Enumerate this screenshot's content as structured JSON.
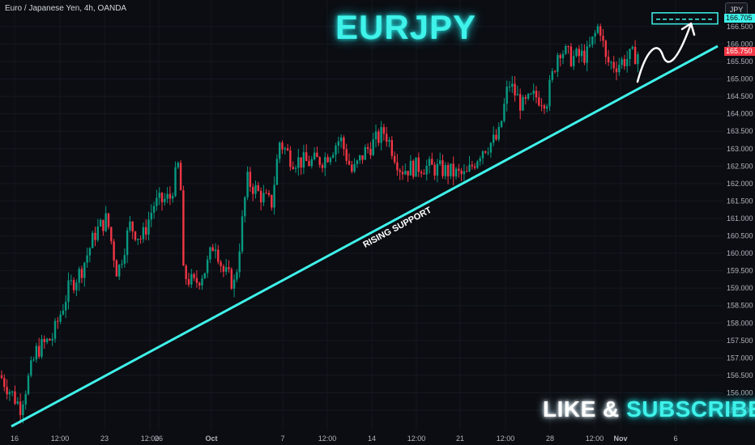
{
  "header": {
    "symbol_line": "Euro / Japanese Yen, 4h, OANDA",
    "title": "EURJPY"
  },
  "price_scale": {
    "currency": "JPY",
    "target_tag": "166.705",
    "last_price_tag": "165.750"
  },
  "cta": {
    "part1": "LIKE & ",
    "part2": "SUBSCRIBE"
  },
  "colors": {
    "background": "#0b0d12",
    "up_candle": "#089981",
    "down_candle": "#f23645",
    "support_line": "#3ff2ea",
    "arrow": "#ffffff"
  },
  "chart_data": {
    "type": "candlestick",
    "title": "EURJPY",
    "ylim": [
      155.2,
      166.9
    ],
    "y_ticks": [
      "155.500",
      "156.000",
      "156.500",
      "157.000",
      "157.500",
      "158.000",
      "158.500",
      "159.000",
      "159.500",
      "160.000",
      "160.500",
      "161.000",
      "161.500",
      "162.000",
      "162.500",
      "163.000",
      "163.500",
      "164.000",
      "164.500",
      "165.000",
      "165.500",
      "166.000",
      "166.500"
    ],
    "x_ticks": [
      "16",
      "12:00",
      "23",
      "12:00",
      "26",
      "Oct",
      "7",
      "12:00",
      "14",
      "12:00",
      "21",
      "12:00",
      "28",
      "12:00",
      "Nov",
      "6"
    ],
    "price_path": [
      [
        0,
        156.5
      ],
      [
        25,
        155.6
      ],
      [
        45,
        157.2
      ],
      [
        65,
        157.6
      ],
      [
        85,
        159.0
      ],
      [
        100,
        159.5
      ],
      [
        118,
        160.6
      ],
      [
        132,
        161.0
      ],
      [
        145,
        159.4
      ],
      [
        160,
        160.8
      ],
      [
        175,
        160.4
      ],
      [
        190,
        161.4
      ],
      [
        210,
        161.6
      ],
      [
        222,
        162.7
      ],
      [
        226,
        159.4
      ],
      [
        240,
        159.1
      ],
      [
        255,
        159.6
      ],
      [
        265,
        160.4
      ],
      [
        275,
        159.5
      ],
      [
        290,
        159.1
      ],
      [
        305,
        162.1
      ],
      [
        320,
        161.7
      ],
      [
        335,
        161.4
      ],
      [
        345,
        163.2
      ],
      [
        360,
        162.7
      ],
      [
        380,
        162.6
      ],
      [
        400,
        162.7
      ],
      [
        420,
        163.3
      ],
      [
        435,
        162.3
      ],
      [
        450,
        162.9
      ],
      [
        475,
        163.5
      ],
      [
        495,
        162.4
      ],
      [
        520,
        162.5
      ],
      [
        545,
        162.4
      ],
      [
        575,
        162.2
      ],
      [
        595,
        163.0
      ],
      [
        615,
        163.3
      ],
      [
        628,
        164.9
      ],
      [
        645,
        164.2
      ],
      [
        660,
        164.5
      ],
      [
        675,
        164.4
      ],
      [
        690,
        165.9
      ],
      [
        705,
        165.6
      ],
      [
        725,
        165.7
      ],
      [
        740,
        166.6
      ],
      [
        748,
        165.5
      ],
      [
        760,
        165.4
      ],
      [
        775,
        165.6
      ],
      [
        790,
        165.75
      ]
    ],
    "support_line": {
      "label": "RISING SUPPORT",
      "from": [
        "16",
        155.1
      ],
      "to": [
        "Nov +",
        165.9
      ]
    },
    "target_zone": {
      "low": 166.6,
      "high": 166.78
    },
    "projection": "arrow up to 166.705"
  }
}
